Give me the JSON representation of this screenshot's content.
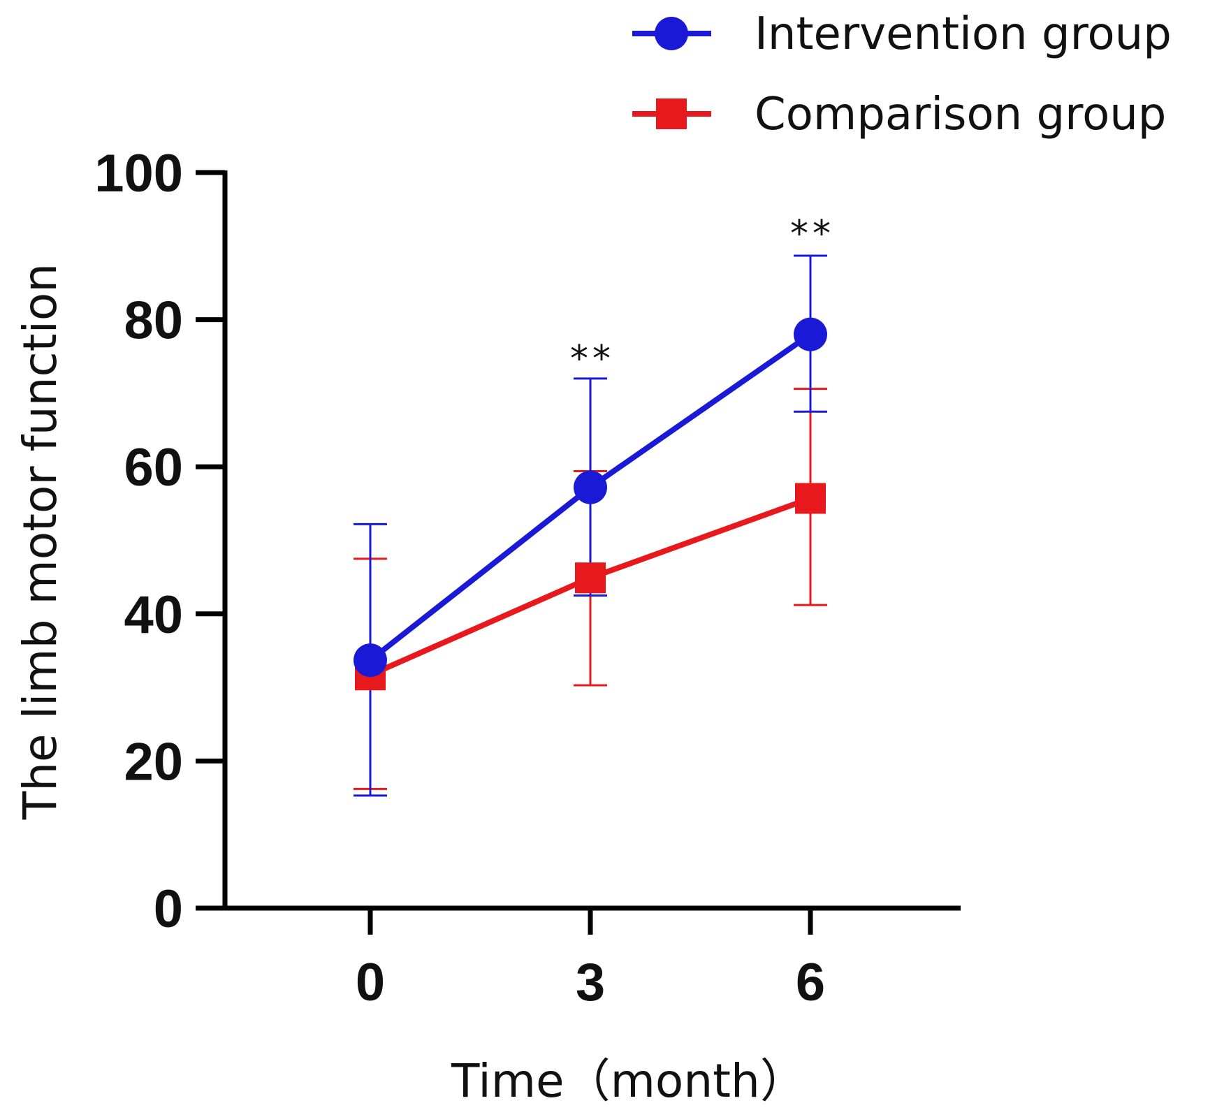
{
  "chart_data": {
    "type": "line",
    "title": "",
    "xlabel": "Time（month）",
    "ylabel": "The limb motor function",
    "x": [
      0,
      3,
      6
    ],
    "x_tick_labels": [
      "0",
      "3",
      "6"
    ],
    "ylim": [
      0,
      100
    ],
    "y_ticks": [
      0,
      20,
      40,
      60,
      80,
      100
    ],
    "y_tick_labels": [
      "0",
      "20",
      "40",
      "60",
      "80",
      "100"
    ],
    "grid": false,
    "legend_position": "top-right",
    "series": [
      {
        "name": "Intervention group",
        "color": "#1a1ad6",
        "marker": "circle",
        "values": [
          33.7,
          57.2,
          78.0
        ],
        "error_upper": [
          52.2,
          72.0,
          88.7
        ],
        "error_lower": [
          15.3,
          42.5,
          67.5
        ]
      },
      {
        "name": "Comparison group",
        "color": "#e8191d",
        "marker": "square",
        "values": [
          31.7,
          44.9,
          55.7
        ],
        "error_upper": [
          47.5,
          59.4,
          70.6
        ],
        "error_lower": [
          16.2,
          30.3,
          41.2
        ]
      }
    ],
    "annotations": [
      {
        "x": 3,
        "y": 74.0,
        "text": "**"
      },
      {
        "x": 6,
        "y": 91.0,
        "text": "**"
      }
    ]
  }
}
